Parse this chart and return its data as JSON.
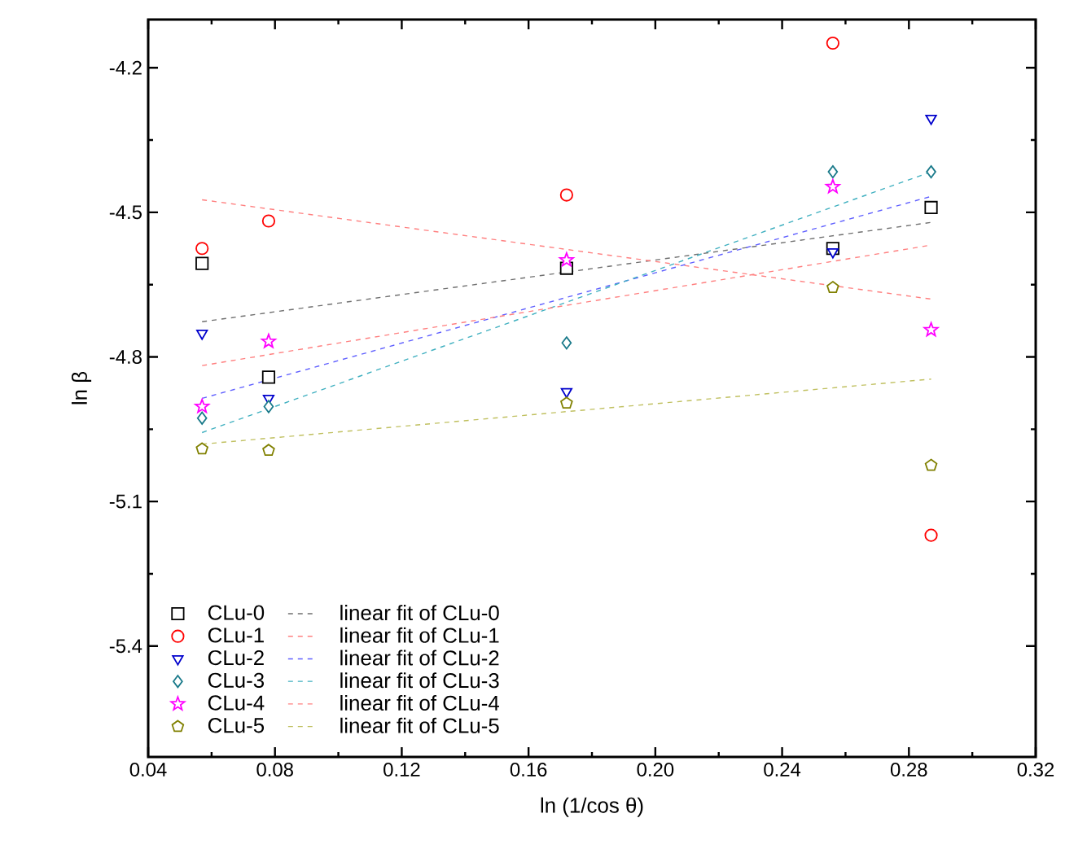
{
  "chart_data": {
    "type": "scatter",
    "xlabel": "ln (1/cos θ)",
    "ylabel": "ln β",
    "xlim": [
      0.04,
      0.32
    ],
    "ylim": [
      -5.63,
      -4.1
    ],
    "xticks": [
      0.04,
      0.08,
      0.12,
      0.16,
      {
        "value": 0.2,
        "label": "0.20"
      },
      0.24,
      0.28,
      0.32
    ],
    "yticks": [
      -5.4,
      -5.1,
      -4.8,
      -4.5,
      -4.2
    ],
    "grid": false,
    "legend": "bottom left",
    "series": [
      {
        "name": "CLu-0",
        "type": "scatter",
        "marker": "square",
        "color": "#000000",
        "x": [
          0.057,
          0.078,
          0.172,
          0.256,
          0.287
        ],
        "values": [
          -4.606,
          -4.842,
          -4.616,
          -4.575,
          -4.49
        ]
      },
      {
        "name": "linear fit of CLu-0",
        "type": "line",
        "line_style": "dashed",
        "color": "#707070",
        "x": [
          0.057,
          0.287
        ],
        "values": [
          -4.727,
          -4.521
        ]
      },
      {
        "name": "CLu-1",
        "type": "scatter",
        "marker": "circle",
        "color": "#ff0000",
        "x": [
          0.057,
          0.078,
          0.172,
          0.256,
          0.287
        ],
        "values": [
          -4.575,
          -4.518,
          -4.464,
          -4.149,
          -5.17
        ]
      },
      {
        "name": "linear fit of CLu-1",
        "type": "line",
        "line_style": "dashed",
        "color": "#ff8080",
        "x": [
          0.057,
          0.287
        ],
        "values": [
          -4.474,
          -4.68
        ]
      },
      {
        "name": "CLu-2",
        "type": "scatter",
        "marker": "triangle",
        "color": "#0000cc",
        "x": [
          0.057,
          0.078,
          0.172,
          0.256,
          0.287
        ],
        "values": [
          -4.751,
          -4.886,
          -4.872,
          -4.582,
          -4.305
        ]
      },
      {
        "name": "linear fit of CLu-2",
        "type": "line",
        "line_style": "dashed",
        "color": "#6060ff",
        "x": [
          0.057,
          0.287
        ],
        "values": [
          -4.886,
          -4.467
        ]
      },
      {
        "name": "CLu-3",
        "type": "scatter",
        "marker": "diamond",
        "color": "#1a7a8a",
        "x": [
          0.057,
          0.078,
          0.172,
          0.256,
          0.287
        ],
        "values": [
          -4.927,
          -4.903,
          -4.771,
          -4.416,
          -4.416
        ]
      },
      {
        "name": "linear fit of CLu-3",
        "type": "line",
        "line_style": "dashed",
        "color": "#40b0c0",
        "x": [
          0.057,
          0.287
        ],
        "values": [
          -4.957,
          -4.416
        ]
      },
      {
        "name": "CLu-4",
        "type": "scatter",
        "marker": "star",
        "color": "#ff00ff",
        "x": [
          0.057,
          0.078,
          0.172,
          0.256,
          0.287
        ],
        "values": [
          -4.903,
          -4.768,
          -4.599,
          -4.447,
          -4.744
        ]
      },
      {
        "name": "linear fit of CLu-4",
        "type": "line",
        "line_style": "dashed",
        "color": "#ff8080",
        "x": [
          0.057,
          0.287
        ],
        "values": [
          -4.818,
          -4.568
        ]
      },
      {
        "name": "CLu-5",
        "type": "scatter",
        "color": "#808000",
        "x": [
          0.057,
          0.078,
          0.172,
          0.256,
          0.287
        ],
        "values": [
          -4.991,
          -4.994,
          -4.896,
          -4.656,
          -5.025
        ]
      },
      {
        "name": "linear fit of CLu-5",
        "type": "line",
        "line_style": "dashed",
        "color": "#c0c060",
        "x": [
          0.057,
          0.287
        ],
        "values": [
          -4.981,
          -4.846
        ]
      }
    ]
  }
}
